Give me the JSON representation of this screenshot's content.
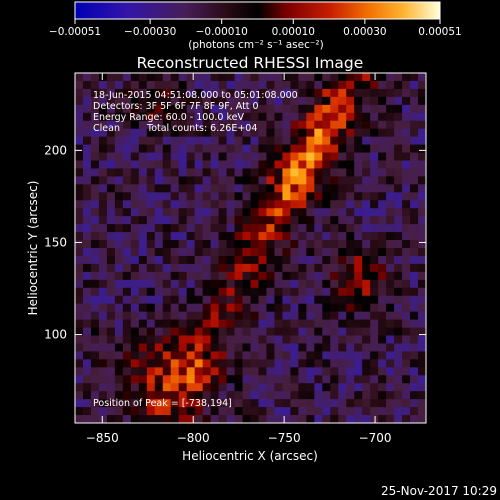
{
  "chart_data": {
    "type": "heatmap",
    "title": "Reconstructed RHESSI Image",
    "xlabel": "Heliocentric X (arcsec)",
    "ylabel": "Heliocentric Y (arcsec)",
    "xlim": [
      -865,
      -672
    ],
    "ylim": [
      52,
      242
    ],
    "x_ticks": [
      -850,
      -800,
      -750,
      -700
    ],
    "x_tick_labels": [
      "−850",
      "−800",
      "−750",
      "−700"
    ],
    "y_ticks": [
      100,
      150,
      200
    ],
    "y_tick_labels": [
      "100",
      "150",
      "200"
    ],
    "grid": false,
    "colorbar": {
      "label": "(photons cm⁻² s⁻¹ asec⁻²)",
      "range": [
        -0.00051,
        0.00051
      ],
      "tick_labels": [
        "−0.00051",
        "−0.00030",
        "−0.00010",
        "0.00010",
        "0.00030",
        "0.00051"
      ],
      "tick_values": [
        -0.00051,
        -0.0003,
        -0.0001,
        0.0001,
        0.0003,
        0.00051
      ]
    },
    "annotations": {
      "time_range": "18-Jun-2015 04:51:08.000 to 05:01:08.000",
      "detectors": "Detectors: 3F 5F 6F 7F 8F 9F, Att 0",
      "energy_range": "Energy Range: 60.0 - 100.0 keV",
      "algorithm": "Clean",
      "total_counts": "Total counts: 6.26E+04",
      "peak_position": "Position of Peak = [-738,194]"
    },
    "peak": {
      "x": -738,
      "y": 194
    }
  },
  "footer": {
    "date": "25-Nov-2017 10:29"
  },
  "colors": {
    "background": "#000000",
    "text": "#ffffff",
    "colormap": [
      "#0000b4",
      "#3214aa",
      "#3c1e8c",
      "#461e5a",
      "#461e3c",
      "#280a14",
      "#000000",
      "#5a0000",
      "#aa0a00",
      "#dc3700",
      "#f06e00",
      "#ffa014",
      "#ffd246",
      "#ffffdc"
    ]
  }
}
